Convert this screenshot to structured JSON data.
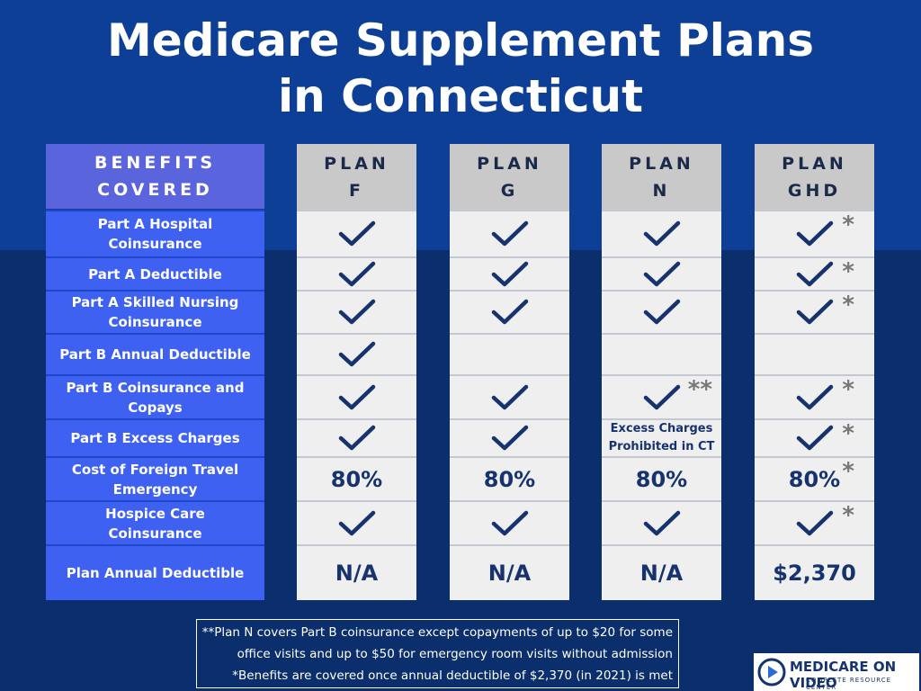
{
  "title": {
    "lines": [
      "Medicare Supplement Plans",
      "in Connecticut"
    ]
  },
  "benefits": {
    "header": "BENEFITS COVERED",
    "rows": [
      "Part A Hospital Coinsurance",
      "Part A Deductible",
      "Part A Skilled Nursing Coinsurance",
      "Part B Annual Deductible",
      "Part B Coinsurance and Copays",
      "Part B Excess Charges",
      "Cost of Foreign Travel Emergency",
      "Hospice Care Coinsurance",
      "Plan Annual Deductible"
    ]
  },
  "plans": [
    {
      "name": "PLAN F",
      "cells": [
        {
          "check": true
        },
        {
          "check": true
        },
        {
          "check": true
        },
        {
          "check": true
        },
        {
          "check": true
        },
        {
          "check": true
        },
        {
          "text": "80%"
        },
        {
          "check": true
        },
        {
          "text": "N/A"
        }
      ]
    },
    {
      "name": "PLAN G",
      "cells": [
        {
          "check": true
        },
        {
          "check": true
        },
        {
          "check": true
        },
        null,
        {
          "check": true
        },
        {
          "check": true
        },
        {
          "text": "80%"
        },
        {
          "check": true
        },
        {
          "text": "N/A"
        }
      ]
    },
    {
      "name": "PLAN N",
      "cells": [
        {
          "check": true
        },
        {
          "check": true
        },
        {
          "check": true
        },
        null,
        {
          "check": true,
          "mark": "**"
        },
        {
          "note": "Excess Charges Prohibited in CT"
        },
        {
          "text": "80%"
        },
        {
          "check": true
        },
        {
          "text": "N/A"
        }
      ]
    },
    {
      "name": "PLAN GHD",
      "cells": [
        {
          "check": true,
          "mark": "*"
        },
        {
          "check": true,
          "mark": "*"
        },
        {
          "check": true,
          "mark": "*"
        },
        null,
        {
          "check": true,
          "mark": "*"
        },
        {
          "check": true,
          "mark": "*"
        },
        {
          "text": "80%",
          "mark": "*"
        },
        {
          "check": true,
          "mark": "*"
        },
        {
          "text": "$2,370"
        }
      ]
    }
  ],
  "footnotes": [
    "**Plan N covers Part B coinsurance except copayments of up to $20 for some",
    "office visits and up to $50  for emergency room visits without admission",
    "*Benefits are covered once annual deductible of $2,370 (in 2021) is met"
  ],
  "logo": {
    "name": "MEDICARE ON VIDEO",
    "tagline": "COMPLETE RESOURCE CENTER"
  }
}
